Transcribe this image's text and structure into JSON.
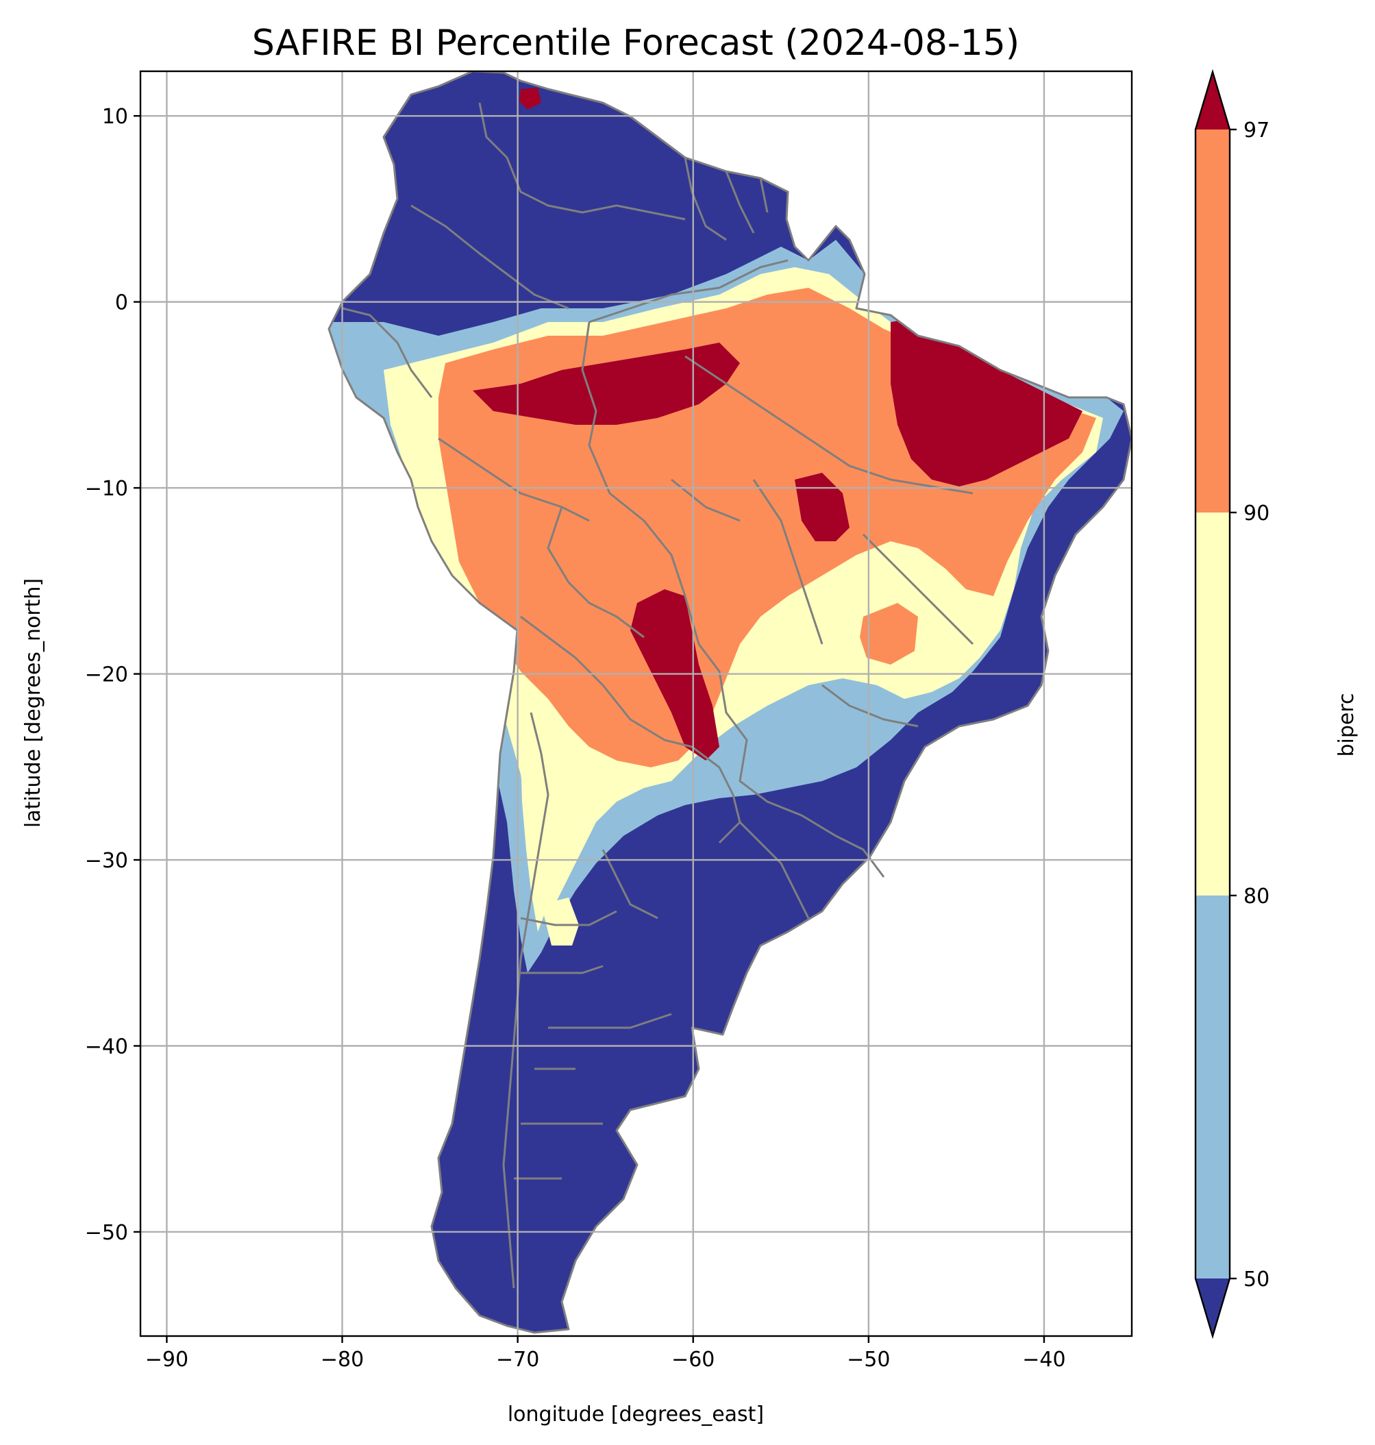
{
  "chart_data": {
    "type": "heatmap",
    "title": "SAFIRE BI Percentile Forecast (2024-08-15)",
    "xlabel": "longitude [degrees_east]",
    "ylabel": "latitude [degrees_north]",
    "xlim": [
      -91.5,
      -35
    ],
    "ylim": [
      -55.6,
      12.4
    ],
    "x_ticks": [
      -90,
      -80,
      -70,
      -60,
      -50,
      -40
    ],
    "y_ticks": [
      10,
      0,
      -10,
      -20,
      -30,
      -40,
      -50
    ],
    "x_tick_labels": [
      "−90",
      "−80",
      "−70",
      "−60",
      "−50",
      "−40"
    ],
    "y_tick_labels": [
      "10",
      "0",
      "−10",
      "−20",
      "−30",
      "−40",
      "−50"
    ],
    "grid": true,
    "colorbar": {
      "label": "biperc",
      "levels": [
        50,
        80,
        90,
        97
      ],
      "level_labels": [
        "50",
        "80",
        "90",
        "97"
      ],
      "extend": "both",
      "bins": [
        {
          "range": "<50",
          "color": "#313695"
        },
        {
          "range": "50-80",
          "color": "#91bfdb"
        },
        {
          "range": "80-90",
          "color": "#ffffbf"
        },
        {
          "range": "90-97",
          "color": "#fc8d59"
        },
        {
          "range": ">97",
          "color": "#a50026"
        }
      ]
    },
    "region": "South America",
    "colors": {
      "below_50": "#313695",
      "p50_80": "#91bfdb",
      "p80_90": "#ffffbf",
      "p90_97": "#fc8d59",
      "above_97": "#a50026",
      "borders": "#7f7f7f",
      "gridlines": "#b0b0b0"
    }
  }
}
